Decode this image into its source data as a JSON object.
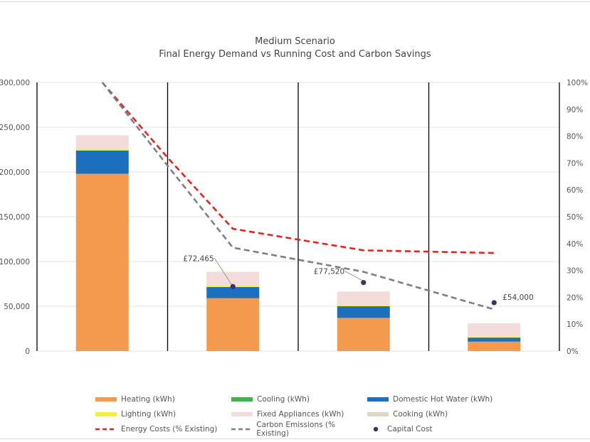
{
  "chart_data": {
    "type": "bar",
    "title": "Medium Scenario",
    "subtitle": "Final Energy Demand vs Running Cost and Carbon Savings",
    "categories": [
      "",
      "",
      "",
      ""
    ],
    "ylim": [
      0,
      300000
    ],
    "y_ticks": [
      "0",
      "50,000",
      "100,000",
      "150,000",
      "200,000",
      "250,000",
      "300,000"
    ],
    "y_tick_values": [
      0,
      50000,
      100000,
      150000,
      200000,
      250000,
      300000
    ],
    "y2lim": [
      0,
      100
    ],
    "y2_ticks": [
      "0%",
      "10%",
      "20%",
      "30%",
      "40%",
      "50%",
      "60%",
      "70%",
      "80%",
      "90%",
      "100%"
    ],
    "y2_tick_values": [
      0,
      10,
      20,
      30,
      40,
      50,
      60,
      70,
      80,
      90,
      100
    ],
    "stacked": true,
    "grid": true,
    "legend_position": "bottom",
    "series": [
      {
        "name": "Heating (kWh)",
        "color": "#F39A4E",
        "values": [
          198000,
          59000,
          37000,
          10500
        ]
      },
      {
        "name": "Cooling (kWh)",
        "color": "#3DB54A",
        "values": [
          0,
          0,
          0,
          0
        ]
      },
      {
        "name": "Domestic Hot Water (kWh)",
        "color": "#1B6FBF",
        "values": [
          26000,
          12500,
          13000,
          4500
        ]
      },
      {
        "name": "Lighting (kWh)",
        "color": "#F3F03C",
        "values": [
          1500,
          1500,
          1500,
          1000
        ]
      },
      {
        "name": "Fixed Appliances (kWh)",
        "color": "#F3DCDA",
        "values": [
          15500,
          15500,
          15000,
          15000
        ]
      },
      {
        "name": "Cooking (kWh)",
        "color": "#DDD8C4",
        "values": [
          0,
          0,
          0,
          0
        ]
      }
    ],
    "lines": [
      {
        "name": "Energy Costs (% Existing)",
        "color": "#E8231E",
        "style": "dashed",
        "x": [
          0,
          0.5,
          1,
          2,
          3
        ],
        "values": [
          100,
          72,
          45.5,
          37.5,
          36.5
        ]
      },
      {
        "name": "Carbon Emissions (% Existing)",
        "color": "#7F7F7F",
        "style": "dashed",
        "x": [
          0,
          0.5,
          1,
          2,
          3
        ],
        "values": [
          100,
          69,
          38.5,
          29.5,
          15.5
        ]
      }
    ],
    "points": {
      "name": "Capital Cost",
      "color": "#3B3460",
      "x": [
        1,
        2,
        3
      ],
      "values_pct": [
        24,
        25.5,
        18
      ],
      "labels": [
        "£72,465",
        "£77,520",
        "£54,000"
      ]
    }
  }
}
